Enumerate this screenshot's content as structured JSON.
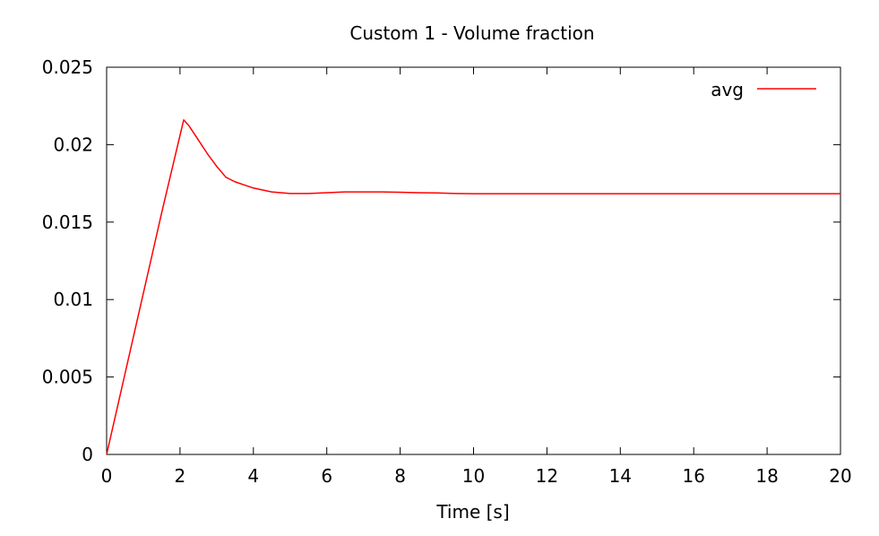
{
  "chart_data": {
    "type": "line",
    "title": "Custom 1 - Volume fraction",
    "xlabel": "Time [s]",
    "ylabel": "",
    "xlim": [
      0,
      20
    ],
    "ylim": [
      0,
      0.025
    ],
    "x_ticks": [
      "0",
      "2",
      "4",
      "6",
      "8",
      "10",
      "12",
      "14",
      "16",
      "18",
      "20"
    ],
    "y_ticks": [
      "0",
      "0.005",
      "0.01",
      "0.015",
      "0.02",
      "0.025"
    ],
    "grid": false,
    "legend_position": "top-right",
    "series": [
      {
        "name": "avg",
        "color": "#ff0000",
        "x": [
          0,
          0.25,
          0.5,
          0.75,
          1.0,
          1.25,
          1.5,
          1.75,
          2.0,
          2.1,
          2.25,
          2.5,
          2.75,
          3.0,
          3.25,
          3.5,
          3.75,
          4.0,
          4.5,
          5.0,
          5.5,
          6.0,
          6.5,
          7.0,
          7.5,
          8.0,
          8.5,
          9.0,
          9.5,
          10.0,
          11.0,
          12.0,
          14.0,
          16.0,
          18.0,
          20.0
        ],
        "y": [
          0,
          0.0026,
          0.0052,
          0.0078,
          0.0104,
          0.013,
          0.0156,
          0.0181,
          0.0206,
          0.0216,
          0.0212,
          0.0203,
          0.0194,
          0.0186,
          0.0179,
          0.0176,
          0.0174,
          0.0172,
          0.01695,
          0.01685,
          0.01685,
          0.0169,
          0.01695,
          0.01695,
          0.01695,
          0.01693,
          0.0169,
          0.01688,
          0.01685,
          0.01683,
          0.01683,
          0.01683,
          0.01683,
          0.01683,
          0.01683,
          0.01683
        ]
      }
    ]
  }
}
